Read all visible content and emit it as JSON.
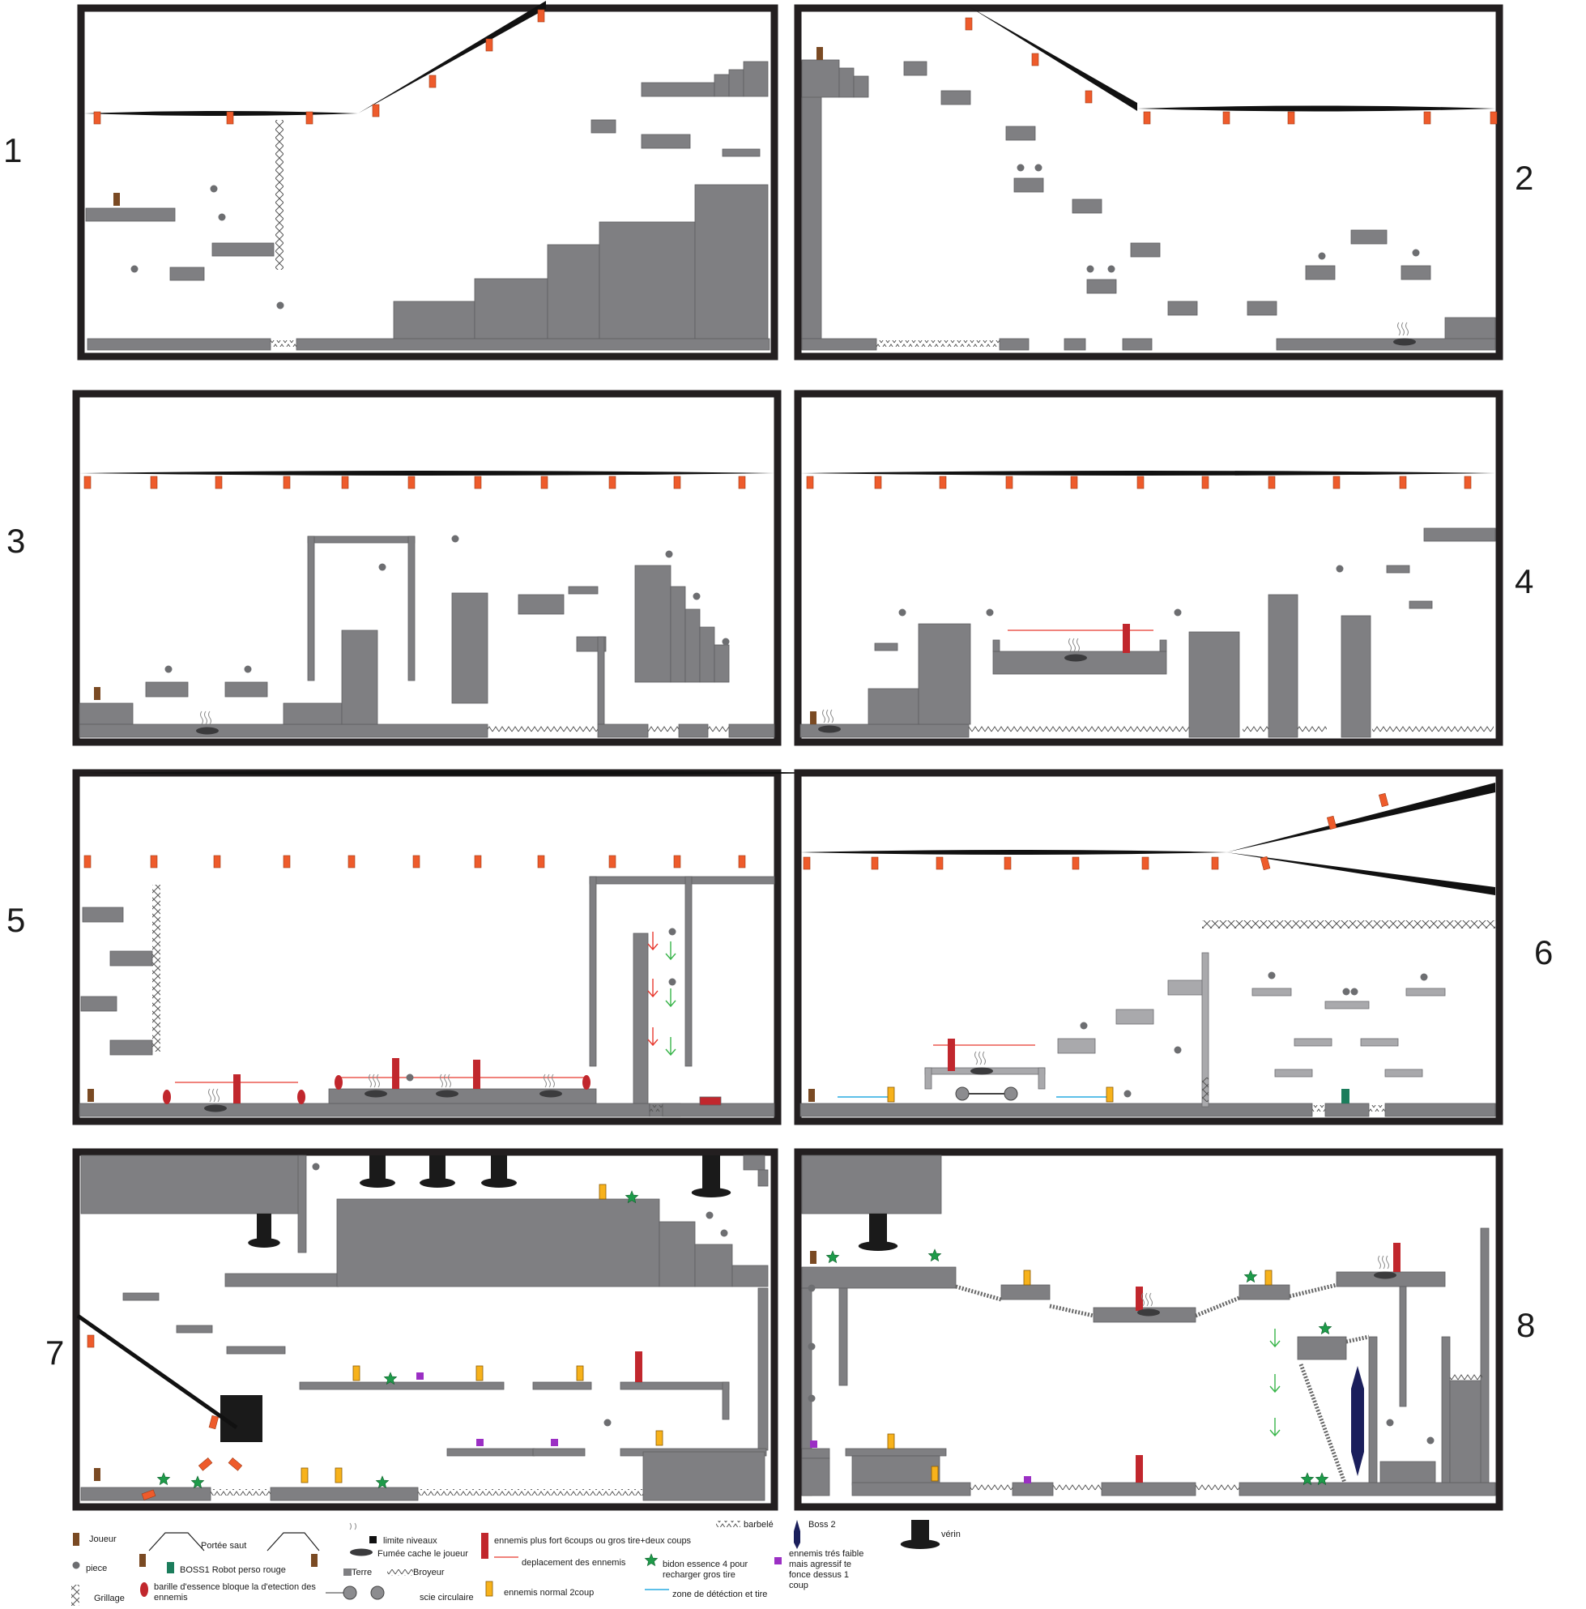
{
  "colors": {
    "ground": "#7f7f82",
    "ground_light": "#a9a9ac",
    "frame": "#231f20",
    "player": "#7a4a23",
    "spike": "#ee5b2b",
    "enemy_strong": "#c1272d",
    "enemy_normal": "#f7b21b",
    "enemy_weak": "#9b2fc4",
    "fuel_star": "#1e9b4a",
    "boss1": "#1c7d5c",
    "boss2": "#1b1f5c",
    "coin": "#6d6e71",
    "detect_zone": "#29abe2",
    "enemy_path": "#e8392f",
    "arrow_red": "#e8392f",
    "arrow_green": "#39b54a"
  },
  "panels": [
    {
      "label": "1"
    },
    {
      "label": "2"
    },
    {
      "label": "3"
    },
    {
      "label": "4"
    },
    {
      "label": "5"
    },
    {
      "label": "6"
    },
    {
      "label": "7"
    },
    {
      "label": "8"
    }
  ],
  "legend": {
    "joueur": "Joueur",
    "piece": "piece",
    "grillage": "Grillage",
    "portee_saut": "Portée saut",
    "boss1": "BOSS1  Robot perso rouge",
    "barille": "barille d'essence bloque la d'etection des ennemis",
    "limite": "limite niveaux",
    "fumee": "Fumée cache le joueur",
    "terre": "Terre",
    "broyeur": "Broyeur",
    "scie": "scie circulaire",
    "ennemi_fort": "ennemis plus fort  6coups ou gros tire+deux coups",
    "deplacement": "deplacement des ennemis",
    "ennemi_normal": "ennemis normal 2coup",
    "barbele": "barbelé",
    "bidon": "bidon essence 4 pour recharger gros tire",
    "zone": "zone de détéction et tire",
    "boss2": "Boss 2",
    "ennemi_faible": "ennemis trés faible mais agressif te fonce dessus 1 coup",
    "verin": "vérin"
  }
}
